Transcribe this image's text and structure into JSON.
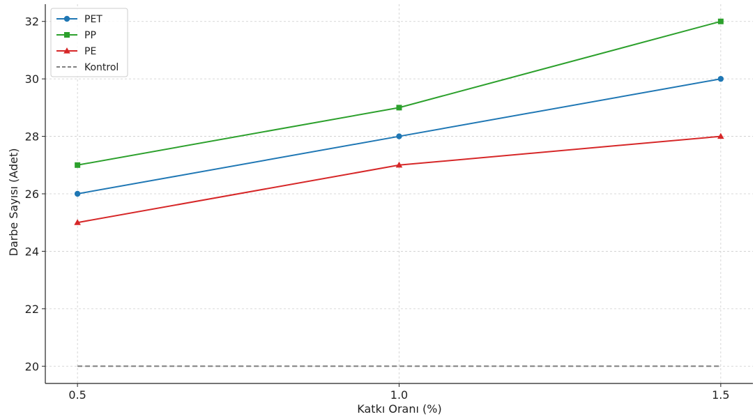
{
  "chart_data": {
    "type": "line",
    "xlabel": "Katkı Oranı (%)",
    "ylabel": "Darbe Sayısı (Adet)",
    "x": [
      0.5,
      1.0,
      1.5
    ],
    "x_tick_labels": [
      "0.5",
      "1.0",
      "1.5"
    ],
    "y_ticks": [
      20,
      22,
      24,
      26,
      28,
      30,
      32
    ],
    "ylim": [
      19.4,
      32.6
    ],
    "xlim": [
      0.45,
      1.55
    ],
    "grid": true,
    "legend_position": "top-left",
    "series": [
      {
        "name": "PET",
        "values": [
          26,
          28,
          30
        ],
        "color": "#1f77b4",
        "marker": "circle",
        "dash": "solid"
      },
      {
        "name": "PP",
        "values": [
          27,
          29,
          32
        ],
        "color": "#2ca02c",
        "marker": "square",
        "dash": "solid"
      },
      {
        "name": "PE",
        "values": [
          25,
          27,
          28
        ],
        "color": "#d62728",
        "marker": "triangle",
        "dash": "solid"
      },
      {
        "name": "Kontrol",
        "values": [
          20,
          20,
          20
        ],
        "color": "#7f7f7f",
        "marker": "none",
        "dash": "dashed"
      }
    ]
  }
}
